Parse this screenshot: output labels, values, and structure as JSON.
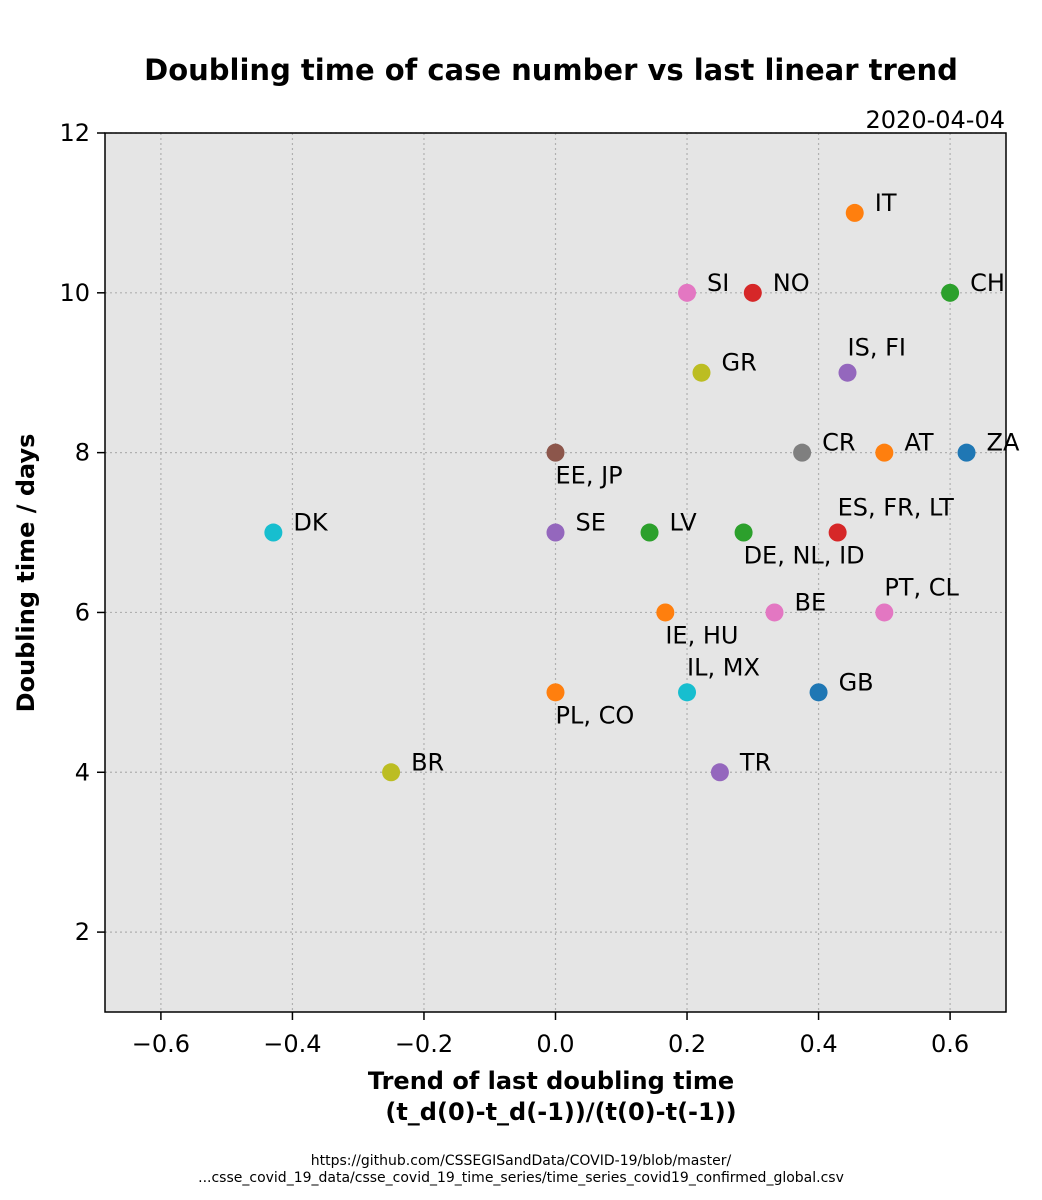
{
  "chart_data": {
    "type": "scatter",
    "title": "Doubling time of case number vs last linear trend",
    "subtitle": "2020-04-04",
    "xlabel_lines": [
      "Trend of last doubling time",
      "(t_d(0)-t_d(-1))/(t(0)-t(-1))"
    ],
    "ylabel": "Doubling time / days",
    "xlim": [
      -0.685,
      0.685
    ],
    "ylim": [
      1.0,
      12.0
    ],
    "xticks": [
      -0.6,
      -0.4,
      -0.2,
      0.0,
      0.2,
      0.4,
      0.6
    ],
    "xtick_labels": [
      "−0.6",
      "−0.4",
      "−0.2",
      "0.0",
      "0.2",
      "0.4",
      "0.6"
    ],
    "yticks": [
      2,
      4,
      6,
      8,
      10,
      12
    ],
    "ytick_labels": [
      "2",
      "4",
      "6",
      "8",
      "10",
      "12"
    ],
    "grid": true,
    "background": "#e5e5e5",
    "points": [
      {
        "label": "IT",
        "x": 0.455,
        "y": 11,
        "color": "#ff7f0e",
        "label_pos": "right"
      },
      {
        "label": "SI",
        "x": 0.2,
        "y": 10,
        "color": "#e377c2",
        "label_pos": "right"
      },
      {
        "label": "NO",
        "x": 0.3,
        "y": 10,
        "color": "#d62728",
        "label_pos": "right"
      },
      {
        "label": "CH",
        "x": 0.6,
        "y": 10,
        "color": "#2ca02c",
        "label_pos": "right"
      },
      {
        "label": "IS, FI",
        "x": 0.444,
        "y": 9,
        "color": "#9467bd",
        "label_pos": "above"
      },
      {
        "label": "GR",
        "x": 0.222,
        "y": 9,
        "color": "#bcbd22",
        "label_pos": "right"
      },
      {
        "label": "EE, JP",
        "x": 0.0,
        "y": 8,
        "color": "#8c564b",
        "label_pos": "below"
      },
      {
        "label": "CR",
        "x": 0.375,
        "y": 8,
        "color": "#7f7f7f",
        "label_pos": "right"
      },
      {
        "label": "AT",
        "x": 0.5,
        "y": 8,
        "color": "#ff7f0e",
        "label_pos": "right"
      },
      {
        "label": "ZA",
        "x": 0.625,
        "y": 8,
        "color": "#1f77b4",
        "label_pos": "right"
      },
      {
        "label": "DK",
        "x": -0.429,
        "y": 7,
        "color": "#17becf",
        "label_pos": "right"
      },
      {
        "label": "SE",
        "x": 0.0,
        "y": 7,
        "color": "#9467bd",
        "label_pos": "right"
      },
      {
        "label": "LV",
        "x": 0.143,
        "y": 7,
        "color": "#2ca02c",
        "label_pos": "right"
      },
      {
        "label": "DE, NL, ID",
        "x": 0.286,
        "y": 7,
        "color": "#2ca02c",
        "label_pos": "below"
      },
      {
        "label": "ES, FR, LT",
        "x": 0.429,
        "y": 7,
        "color": "#d62728",
        "label_pos": "above"
      },
      {
        "label": "IE, HU",
        "x": 0.167,
        "y": 6,
        "color": "#ff7f0e",
        "label_pos": "below"
      },
      {
        "label": "BE",
        "x": 0.333,
        "y": 6,
        "color": "#e377c2",
        "label_pos": "right"
      },
      {
        "label": "PT, CL",
        "x": 0.5,
        "y": 6,
        "color": "#e377c2",
        "label_pos": "above"
      },
      {
        "label": "PL, CO",
        "x": 0.0,
        "y": 5,
        "color": "#ff7f0e",
        "label_pos": "below"
      },
      {
        "label": "IL, MX",
        "x": 0.2,
        "y": 5,
        "color": "#17becf",
        "label_pos": "above"
      },
      {
        "label": "GB",
        "x": 0.4,
        "y": 5,
        "color": "#1f77b4",
        "label_pos": "right"
      },
      {
        "label": "BR",
        "x": -0.25,
        "y": 4,
        "color": "#bcbd22",
        "label_pos": "right"
      },
      {
        "label": "TR",
        "x": 0.25,
        "y": 4,
        "color": "#9467bd",
        "label_pos": "right"
      }
    ]
  },
  "source_lines": [
    "https://github.com/CSSEGISandData/COVID-19/blob/master/",
    "...csse_covid_19_data/csse_covid_19_time_series/time_series_covid19_confirmed_global.csv"
  ]
}
